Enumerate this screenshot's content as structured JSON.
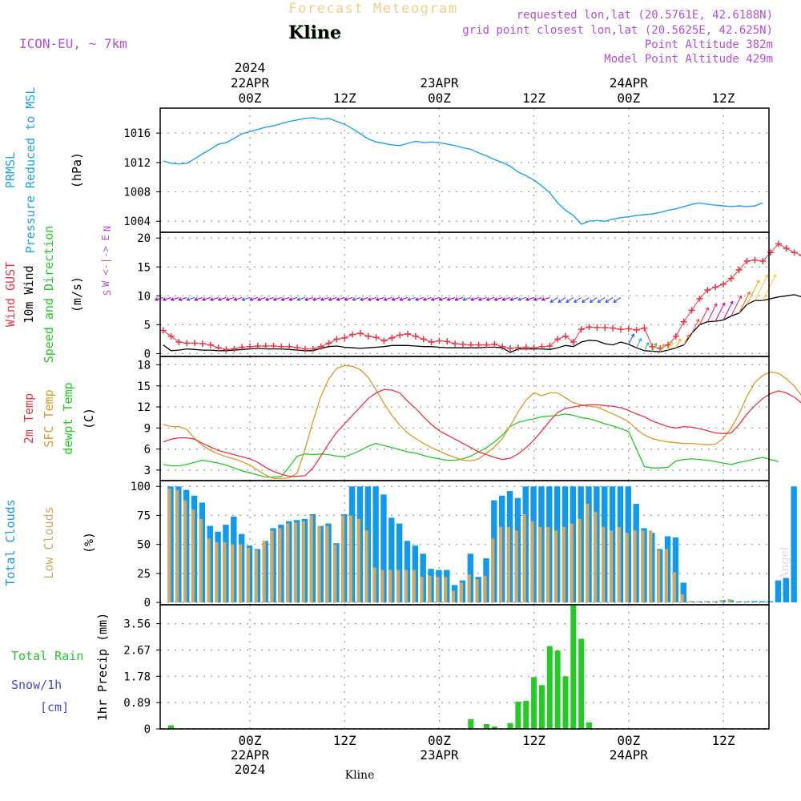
{
  "header": {
    "app_title": "Forecast Meteogram",
    "location": "Kline",
    "model": "ICON-EU, ~ 7km",
    "requested": "requested lon,lat (20.5761E, 42.6188N)",
    "grid_point": "grid point closest lon,lat (20.5625E, 42.625N)",
    "point_altitude": "Point Altitude 382m",
    "model_altitude": "Model Point Altitude 429m",
    "credit": "by Angel",
    "footer_location": "Kline"
  },
  "colors": {
    "pressure": "#1aa3ee",
    "gust": "#ee3344",
    "wind": "#000000",
    "temp2m": "#ee3344",
    "sfc_temp": "#dd9922",
    "dewpt": "#22cc22",
    "total_clouds": "#1199ee",
    "low_clouds": "#ccaa66",
    "rain": "#22cc22",
    "snow": "#4444dd",
    "title_orange": "#f5cf8a",
    "meta_purple": "#b050e0"
  },
  "time_axis": {
    "top_labels": [
      {
        "h": 0,
        "lines": [
          "2024",
          "22APR",
          "00Z"
        ]
      },
      {
        "h": 12,
        "lines": [
          "12Z"
        ]
      },
      {
        "h": 24,
        "lines": [
          "23APR",
          "00Z"
        ]
      },
      {
        "h": 36,
        "lines": [
          "12Z"
        ]
      },
      {
        "h": 48,
        "lines": [
          "24APR",
          "00Z"
        ]
      },
      {
        "h": 60,
        "lines": [
          "12Z"
        ]
      }
    ],
    "bottom_labels": [
      {
        "h": 0,
        "lines": [
          "00Z",
          "22APR",
          "2024"
        ]
      },
      {
        "h": 12,
        "lines": [
          "12Z"
        ]
      },
      {
        "h": 24,
        "lines": [
          "00Z",
          "23APR"
        ]
      },
      {
        "h": 36,
        "lines": [
          "12Z"
        ]
      },
      {
        "h": 48,
        "lines": [
          "00Z",
          "24APR"
        ]
      },
      {
        "h": 60,
        "lines": [
          "12Z"
        ]
      }
    ]
  },
  "chart_data": [
    {
      "type": "line",
      "title": "PRMSL Pressure Reduced to MSL",
      "label_lines": [
        "PRMSL",
        "Pressure Reduced to MSL"
      ],
      "ylabel": "(hPa)",
      "ylim": [
        1002.5,
        1019.4
      ],
      "yticks": [
        1004,
        1008,
        1012,
        1016
      ],
      "x_hours": "-11 to 65 step 1",
      "series": [
        {
          "name": "PRMSL",
          "values": [
            1012.2,
            1011.9,
            1011.8,
            1011.9,
            1012.5,
            1013.2,
            1013.8,
            1014.5,
            1014.7,
            1015.3,
            1015.9,
            1016.2,
            1016.5,
            1016.8,
            1017.0,
            1017.3,
            1017.6,
            1017.8,
            1018.0,
            1018.1,
            1017.9,
            1018.0,
            1017.6,
            1017.2,
            1016.6,
            1015.9,
            1015.2,
            1014.8,
            1014.6,
            1014.4,
            1014.3,
            1014.6,
            1014.9,
            1014.7,
            1014.8,
            1014.7,
            1014.5,
            1014.3,
            1014.0,
            1013.8,
            1013.3,
            1012.9,
            1012.4,
            1012.0,
            1011.5,
            1010.7,
            1010.2,
            1009.6,
            1008.8,
            1007.9,
            1006.5,
            1005.5,
            1004.8,
            1003.6,
            1004.0,
            1004.1,
            1004.0,
            1004.3,
            1004.5,
            1004.6,
            1004.8,
            1004.9,
            1005.0,
            1005.2,
            1005.5,
            1005.7,
            1006.0,
            1006.3,
            1006.5,
            1006.3,
            1006.2,
            1006.1,
            1006.0,
            1006.1,
            1006.0,
            1006.1,
            1006.5
          ]
        }
      ]
    },
    {
      "type": "line",
      "title": "Wind GUST / 10m Wind Speed and Direction",
      "label_lines": [
        "Wind GUST",
        "10m Wind",
        "Speed and Direction"
      ],
      "ylabel": "(m/s)",
      "compass": [
        "N",
        "W <-|-> E",
        "S"
      ],
      "ylim": [
        -0.5,
        21
      ],
      "yticks": [
        0,
        5,
        10,
        15,
        20
      ],
      "x_hours": "-11 to 65 step 1",
      "series": [
        {
          "name": "Wind GUST",
          "marker": "+",
          "values": [
            4.0,
            3.0,
            2.0,
            1.8,
            1.8,
            1.7,
            1.5,
            1.0,
            0.7,
            0.8,
            1.1,
            1.2,
            1.3,
            1.3,
            1.3,
            1.2,
            1.2,
            1.0,
            0.8,
            0.8,
            1.2,
            1.8,
            2.5,
            2.7,
            3.3,
            3.5,
            3.0,
            2.8,
            2.2,
            2.7,
            3.2,
            3.4,
            3.0,
            2.5,
            2.0,
            2.2,
            2.1,
            1.7,
            1.6,
            1.5,
            1.5,
            1.5,
            1.6,
            1.2,
            0.9,
            1.0,
            1.1,
            1.0,
            1.2,
            1.3,
            2.5,
            3.0,
            2.0,
            4.2,
            4.6,
            4.5,
            4.5,
            4.4,
            4.2,
            4.3,
            4.1,
            4.4,
            1.2,
            0.9,
            1.5,
            3.0,
            5.5,
            7.5,
            9.5,
            11.0,
            11.5,
            12.0,
            13.0,
            14.5,
            16.0,
            16.2,
            16.0,
            17.5,
            19.0,
            18.2,
            17.5,
            17.0,
            16.0,
            14.0
          ]
        },
        {
          "name": "10m Wind",
          "values": [
            1.5,
            0.5,
            0.6,
            0.8,
            0.7,
            0.6,
            0.6,
            0.5,
            0.5,
            0.6,
            0.7,
            0.8,
            0.9,
            0.8,
            0.8,
            0.8,
            0.7,
            0.6,
            0.5,
            0.5,
            0.9,
            1.2,
            1.3,
            1.1,
            1.0,
            0.9,
            1.0,
            1.1,
            1.2,
            1.4,
            1.4,
            1.4,
            1.3,
            1.2,
            1.2,
            1.1,
            1.0,
            1.0,
            1.0,
            1.0,
            1.0,
            1.1,
            1.1,
            1.0,
            0.2,
            0.8,
            0.8,
            0.8,
            0.8,
            0.7,
            1.0,
            1.4,
            1.2,
            2.0,
            2.3,
            2.2,
            1.7,
            1.5,
            2.0,
            1.6,
            1.0,
            0.5,
            0.4,
            0.3,
            0.6,
            1.0,
            1.5,
            3.5,
            5.0,
            5.5,
            5.6,
            5.8,
            6.5,
            7.0,
            8.5,
            9.2,
            9.2,
            9.5,
            9.8,
            10.0,
            10.2,
            9.8,
            9.3,
            8.0,
            7.0
          ]
        }
      ],
      "direction_arrows": [
        {
          "from_hour": -11,
          "to_hour": 38,
          "direction": "W",
          "color": "#9900cc"
        },
        {
          "from_hour": 39,
          "to_hour": 47,
          "direction": "SW",
          "color": "#3355ee"
        },
        {
          "from_hour": 48,
          "to_hour": 65,
          "direction": "NE",
          "color": "multicolor by speed"
        }
      ]
    },
    {
      "type": "line",
      "title": "2m Temp / SFC Temp / dewpt Temp",
      "label_lines": [
        "2m Temp",
        "SFC Temp",
        "dewpt Temp"
      ],
      "ylabel": "(C)",
      "ylim": [
        1.5,
        19.2
      ],
      "yticks": [
        3,
        6,
        9,
        12,
        15,
        18
      ],
      "x_hours": "-11 to 65 step 1",
      "series": [
        {
          "name": "2m Temp",
          "values": [
            7.0,
            7.4,
            7.6,
            7.6,
            7.4,
            6.8,
            6.3,
            5.8,
            5.5,
            5.2,
            4.9,
            4.6,
            4.1,
            3.4,
            2.8,
            2.4,
            2.1,
            2.1,
            2.2,
            3.3,
            5.0,
            6.8,
            8.4,
            9.6,
            10.8,
            12.0,
            13.2,
            14.0,
            14.5,
            14.4,
            14.0,
            12.8,
            11.8,
            10.6,
            9.5,
            8.6,
            8.0,
            7.4,
            6.8,
            6.2,
            5.6,
            5.2,
            4.8,
            4.5,
            4.7,
            5.3,
            6.2,
            7.3,
            8.6,
            10.0,
            11.2,
            11.8,
            12.0,
            12.2,
            12.3,
            12.3,
            12.2,
            12.1,
            11.9,
            11.5,
            11.0,
            10.6,
            10.0,
            9.6,
            9.2,
            9.0,
            9.2,
            9.1,
            8.9,
            8.6,
            8.3,
            8.2,
            8.3,
            9.5,
            11.0,
            12.2,
            13.2,
            13.9,
            14.3,
            14.0,
            13.4,
            12.5,
            11.4,
            10.5,
            9.8,
            8.5
          ]
        },
        {
          "name": "SFC Temp",
          "values": [
            9.5,
            9.2,
            9.2,
            8.8,
            7.5,
            6.5,
            5.8,
            5.3,
            4.9,
            4.6,
            4.2,
            3.7,
            3.0,
            2.3,
            1.8,
            1.8,
            1.9,
            2.6,
            6.0,
            10.0,
            13.5,
            16.0,
            17.5,
            17.9,
            17.8,
            17.3,
            16.2,
            14.4,
            12.5,
            10.8,
            9.4,
            8.3,
            7.5,
            6.8,
            6.2,
            5.7,
            5.2,
            4.8,
            4.4,
            4.3,
            4.6,
            5.4,
            6.3,
            7.5,
            9.3,
            11.3,
            13.0,
            14.0,
            13.6,
            14.0,
            14.0,
            13.3,
            12.6,
            12.3,
            12.1,
            12.0,
            11.5,
            11.0,
            10.5,
            9.9,
            8.8,
            8.0,
            7.5,
            7.2,
            7.0,
            6.9,
            6.8,
            6.8,
            6.7,
            6.6,
            6.7,
            7.5,
            9.0,
            11.0,
            13.5,
            15.5,
            16.5,
            17.0,
            16.8,
            16.0,
            15.0,
            13.5,
            12.2,
            11.2,
            10.0,
            9.5
          ]
        },
        {
          "name": "dewpt Temp",
          "values": [
            3.8,
            3.6,
            3.6,
            3.8,
            4.1,
            4.4,
            4.2,
            4.0,
            3.7,
            3.3,
            2.9,
            2.6,
            2.3,
            2.0,
            2.0,
            2.1,
            3.5,
            5.0,
            5.3,
            5.2,
            5.3,
            5.2,
            5.0,
            4.9,
            5.3,
            5.8,
            6.4,
            6.8,
            6.5,
            6.2,
            5.9,
            5.6,
            5.4,
            5.1,
            4.8,
            4.6,
            4.4,
            4.4,
            4.6,
            5.0,
            5.6,
            6.2,
            7.0,
            8.0,
            9.2,
            9.8,
            10.1,
            10.3,
            10.6,
            10.7,
            10.8,
            11.0,
            10.8,
            10.5,
            10.3,
            10.0,
            9.6,
            9.3,
            8.9,
            8.5,
            6.0,
            3.5,
            3.3,
            3.3,
            3.4,
            4.3,
            4.5,
            4.6,
            4.5,
            4.4,
            4.2,
            4.0,
            3.8,
            4.1,
            4.3,
            4.6,
            4.8,
            4.5,
            4.2
          ]
        }
      ]
    },
    {
      "type": "bar",
      "title": "Total Clouds / Low Clouds",
      "label_lines": [
        "Total Clouds",
        "Low Clouds"
      ],
      "ylabel": "(%)",
      "ylim": [
        -2,
        105
      ],
      "yticks": [
        0,
        25,
        50,
        75,
        100
      ],
      "x_hours": "-10 to 65 step 1",
      "series": [
        {
          "name": "Total Clouds",
          "values": [
            100,
            100,
            97,
            92,
            86,
            66,
            61,
            67,
            74,
            59,
            49,
            46,
            53,
            64,
            67,
            70,
            71,
            72,
            76,
            66,
            68,
            51,
            76,
            100,
            100,
            100,
            100,
            93,
            73,
            68,
            53,
            49,
            42,
            29,
            28,
            28,
            15,
            19,
            42,
            22,
            38,
            88,
            92,
            96,
            90,
            100,
            100,
            100,
            100,
            100,
            100,
            100,
            100,
            100,
            100,
            100,
            100,
            100,
            100,
            85,
            64,
            60,
            46,
            57,
            56,
            17,
            1,
            1,
            1,
            1,
            2,
            2,
            1,
            1,
            1,
            1,
            1,
            19,
            21,
            100
          ]
        },
        {
          "name": "Low Clouds",
          "values": [
            98,
            97,
            88,
            80,
            72,
            55,
            52,
            52,
            50,
            50,
            47,
            45,
            53,
            62,
            64,
            68,
            69,
            70,
            75,
            66,
            66,
            50,
            75,
            75,
            72,
            62,
            30,
            28,
            28,
            28,
            28,
            28,
            22,
            23,
            22,
            22,
            10,
            17,
            24,
            20,
            23,
            55,
            65,
            65,
            62,
            76,
            70,
            65,
            65,
            62,
            65,
            68,
            72,
            85,
            78,
            65,
            62,
            65,
            60,
            62,
            62,
            62,
            45,
            46,
            26,
            7,
            1,
            1,
            1,
            1,
            2,
            3,
            1,
            1,
            0,
            0,
            0,
            0,
            0,
            0
          ]
        }
      ]
    },
    {
      "type": "bar",
      "title": "Total Rain / Snow/1h [cm] - 1hr Precip (mm)",
      "label_lines": [
        "Total  Rain",
        "Snow/1h",
        "[cm]"
      ],
      "ylabel": "1hr Precip (mm)",
      "ylim": [
        0,
        4.2
      ],
      "yticks": [
        0,
        0.89,
        1.78,
        2.67,
        3.56
      ],
      "ytick_labels": [
        "0",
        "0.89",
        "1.78",
        "2.67",
        "3.56"
      ],
      "bars": [
        {
          "h": -10,
          "value": 0.12
        },
        {
          "h": 28,
          "value": 0.33
        },
        {
          "h": 30,
          "value": 0.16
        },
        {
          "h": 31,
          "value": 0.08
        },
        {
          "h": 33,
          "value": 0.2
        },
        {
          "h": 34,
          "value": 0.92
        },
        {
          "h": 35,
          "value": 0.95
        },
        {
          "h": 36,
          "value": 1.75
        },
        {
          "h": 37,
          "value": 1.48
        },
        {
          "h": 38,
          "value": 2.8
        },
        {
          "h": 39,
          "value": 2.65
        },
        {
          "h": 40,
          "value": 1.78
        },
        {
          "h": 41,
          "value": 4.2
        },
        {
          "h": 42,
          "value": 3.05
        },
        {
          "h": 43,
          "value": 0.22
        }
      ]
    }
  ]
}
